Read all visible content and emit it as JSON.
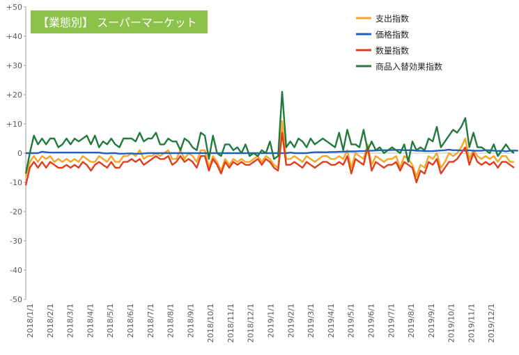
{
  "chart_data": {
    "type": "line",
    "title": "【業態別】 スーパーマーケット",
    "title_bg": "#8cc24a",
    "ylim": [
      -50,
      50
    ],
    "yticks": [
      "+50",
      "+40",
      "+30",
      "+20",
      "+10",
      "0",
      "-10",
      "-20",
      "-30",
      "-40",
      "-50"
    ],
    "ytick_values": [
      50,
      40,
      30,
      20,
      10,
      0,
      -10,
      -20,
      -30,
      -40,
      -50
    ],
    "xticks": [
      "2018/1/1",
      "2018/2/1",
      "2018/3/1",
      "2018/4/1",
      "2018/5/1",
      "2018/6/1",
      "2018/7/1",
      "2018/8/1",
      "2018/9/1",
      "2018/10/1",
      "2018/11/1",
      "2018/12/1",
      "2019/1/1",
      "2019/2/1",
      "2019/3/1",
      "2019/4/1",
      "2019/5/1",
      "2019/6/1",
      "2019/7/1",
      "2019/8/1",
      "2019/9/1",
      "2019/10/1",
      "2019/11/1",
      "2019/12/1"
    ],
    "grid": false,
    "legend_position": "top-right",
    "series": [
      {
        "name": "支出指数",
        "color": "#f5a623",
        "values": [
          -8,
          -3,
          -1,
          -3,
          -1,
          -2,
          -1,
          -3,
          -2,
          -3,
          -2,
          -3,
          -2,
          -3,
          -1,
          -2,
          -3,
          -3,
          -1,
          -2,
          -3,
          -1,
          -3,
          -3,
          -1,
          -1,
          0,
          -1,
          1,
          -2,
          -1,
          -1,
          0,
          -1,
          0,
          1,
          -2,
          -2,
          1,
          -2,
          0,
          -1,
          -3,
          1,
          1,
          -5,
          -1,
          -3,
          -6,
          -2,
          -4,
          -2,
          -3,
          -2,
          -3,
          -3,
          -2,
          -1,
          -3,
          -1,
          -2,
          -4,
          -5,
          11,
          -2,
          -2,
          -1,
          -2,
          -3,
          -1,
          -2,
          -3,
          -2,
          -1,
          -1,
          -2,
          -2,
          -1,
          -2,
          1,
          -5,
          0,
          -1,
          -2,
          3,
          -4,
          -1,
          -2,
          -3,
          -2,
          -2,
          -1,
          -5,
          -1,
          -2,
          -4,
          -8,
          -4,
          -5,
          -1,
          -2,
          0,
          -5,
          -3,
          0,
          -1,
          0,
          2,
          5,
          -2,
          1,
          -1,
          -2,
          -1,
          -2,
          -1,
          -3,
          -1,
          -1,
          -3,
          -3
        ]
      },
      {
        "name": "価格指数",
        "color": "#1f5fbf",
        "values": [
          0,
          0,
          0,
          0,
          0.5,
          0.3,
          0.2,
          0.2,
          0.2,
          0.2,
          0.2,
          0.2,
          0.2,
          0.2,
          0.2,
          0.2,
          0.2,
          0.2,
          0.2,
          0,
          -0.1,
          0,
          0,
          -0.2,
          -0.2,
          -0.1,
          -0.1,
          -0.2,
          -0.2,
          -0.1,
          0,
          0,
          0,
          0,
          0,
          0,
          0,
          0,
          0,
          0,
          0,
          0,
          0,
          0,
          0,
          0,
          0,
          0,
          0,
          0,
          0,
          0,
          0,
          0,
          0,
          0,
          0,
          0,
          0,
          0,
          0,
          0,
          0,
          0,
          0,
          0.2,
          0,
          0,
          0,
          0,
          0.2,
          0.3,
          0.3,
          0.3,
          0.3,
          0.4,
          0.4,
          0.5,
          0.5,
          0.6,
          0.6,
          0.6,
          0.7,
          0.7,
          0.8,
          0.8,
          0.9,
          1.0,
          1.0,
          1.0,
          1.1,
          1.1,
          1.1,
          1.0,
          1.0,
          1.0,
          0.8,
          0.8,
          0.7,
          0.7,
          0.7,
          0.8,
          0.9,
          1.0,
          1.2,
          1.0,
          1.0,
          0.9,
          0.8,
          1.0,
          0.8,
          0.8,
          0.8,
          1.0,
          1.0,
          0.8,
          0.7,
          0.8,
          0.6,
          0.8,
          0.9,
          0.8
        ]
      },
      {
        "name": "数量指数",
        "color": "#e03c1e",
        "values": [
          -11,
          -5,
          -3,
          -5,
          -3,
          -5,
          -3,
          -4,
          -5,
          -5,
          -4,
          -5,
          -4,
          -5,
          -3,
          -4,
          -6,
          -4,
          -3,
          -4,
          -5,
          -3,
          -5,
          -5,
          -3,
          -3,
          -2,
          -3,
          -2,
          -4,
          -3,
          -2,
          -1,
          -2,
          -2,
          -1,
          -4,
          -3,
          -1,
          -3,
          -2,
          -3,
          -5,
          -1,
          -1,
          -6,
          -2,
          -4,
          -7,
          -3,
          -5,
          -3,
          -4,
          -3,
          -4,
          -4,
          -3,
          -2,
          -4,
          -2,
          -3,
          -5,
          -6,
          7,
          -4,
          -4,
          -3,
          -4,
          -5,
          -3,
          -4,
          -5,
          -4,
          -3,
          -3,
          -4,
          -4,
          -3,
          -4,
          -1,
          -7,
          -2,
          -3,
          -4,
          2,
          -6,
          -3,
          -4,
          -5,
          -4,
          -4,
          -3,
          -6,
          -3,
          -4,
          -5,
          -10,
          -6,
          -7,
          -3,
          -4,
          -2,
          -7,
          -5,
          -3,
          -3,
          -2,
          0,
          2,
          -4,
          0,
          -3,
          -4,
          -3,
          -4,
          -3,
          -5,
          -3,
          -3,
          -4,
          -5
        ]
      },
      {
        "name": "商品入替効果指数",
        "color": "#1f7a3c",
        "values": [
          -7,
          0,
          6,
          3,
          5,
          3,
          5,
          5,
          2,
          3,
          5,
          3,
          5,
          4,
          5,
          6,
          3,
          6,
          2,
          4,
          3,
          5,
          3,
          2,
          5,
          5,
          5,
          4,
          7,
          4,
          5,
          5,
          7,
          3,
          3,
          5,
          4,
          4,
          1,
          5,
          4,
          2,
          1,
          7,
          6,
          -2,
          6,
          0,
          -1,
          3,
          3,
          1,
          2,
          0,
          3,
          -1,
          0,
          -1,
          1,
          0,
          4,
          -2,
          -1,
          21,
          2,
          4,
          2,
          5,
          4,
          2,
          5,
          3,
          4,
          5,
          4,
          3,
          2,
          7,
          1,
          8,
          3,
          3,
          2,
          8,
          1,
          4,
          1,
          2,
          0,
          1,
          2,
          1,
          0,
          3,
          -3,
          4,
          1,
          2,
          1,
          5,
          4,
          9,
          2,
          4,
          6,
          8,
          7,
          9,
          12,
          2,
          7,
          2,
          2,
          1,
          0,
          3,
          -1,
          1,
          3,
          1,
          0
        ]
      }
    ]
  }
}
